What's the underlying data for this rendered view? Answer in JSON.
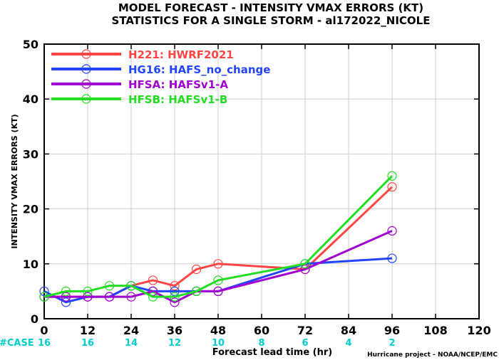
{
  "chart_data": {
    "type": "line",
    "title_line1": "MODEL FORECAST - INTENSITY VMAX ERRORS (KT)",
    "title_line2": "STATISTICS FOR A SINGLE STORM - al172022_NICOLE",
    "xlabel": "Forecast lead time (hr)",
    "ylabel": "INTENSITY VMAX ERRORS (KT)",
    "credit": "Hurricane project - NOAA/NCEP/EMC",
    "xlim": [
      0,
      120
    ],
    "ylim": [
      0,
      50
    ],
    "xticks": [
      0,
      12,
      24,
      36,
      48,
      60,
      72,
      84,
      96,
      108,
      120
    ],
    "yticks": [
      0,
      10,
      20,
      30,
      40,
      50
    ],
    "case_label": "#CASE",
    "case_color": "#00cccc",
    "cases": [
      {
        "x": 0,
        "n": "16"
      },
      {
        "x": 12,
        "n": "16"
      },
      {
        "x": 24,
        "n": "14"
      },
      {
        "x": 36,
        "n": "12"
      },
      {
        "x": 48,
        "n": "10"
      },
      {
        "x": 60,
        "n": "8"
      },
      {
        "x": 72,
        "n": "6"
      },
      {
        "x": 84,
        "n": "4"
      },
      {
        "x": 96,
        "n": "2"
      }
    ],
    "legend_position": "top-left",
    "series": [
      {
        "name": "H221: HWRF2021",
        "color": "#ff4444",
        "x": [
          0,
          6,
          12,
          18,
          24,
          30,
          36,
          42,
          48,
          72,
          96
        ],
        "y": [
          4,
          4,
          4,
          4,
          6,
          7,
          6,
          9,
          10,
          9,
          24
        ]
      },
      {
        "name": "HG16: HAFS_no_change",
        "color": "#2244ff",
        "x": [
          0,
          6,
          12,
          18,
          24,
          30,
          36,
          42,
          48,
          72,
          96
        ],
        "y": [
          5,
          3,
          4,
          4,
          6,
          5,
          5,
          5,
          5,
          10,
          11
        ]
      },
      {
        "name": "HFSA: HAFSv1-A",
        "color": "#a000d0",
        "x": [
          0,
          6,
          12,
          18,
          24,
          30,
          36,
          42,
          48,
          72,
          96
        ],
        "y": [
          4,
          4,
          4,
          4,
          4,
          5,
          3,
          5,
          5,
          9,
          16
        ]
      },
      {
        "name": "HFSB: HAFSv1-B",
        "color": "#22dd22",
        "x": [
          0,
          6,
          12,
          18,
          24,
          30,
          36,
          42,
          48,
          72,
          96
        ],
        "y": [
          4,
          5,
          5,
          6,
          6,
          4,
          4,
          5,
          7,
          10,
          26
        ]
      }
    ]
  }
}
